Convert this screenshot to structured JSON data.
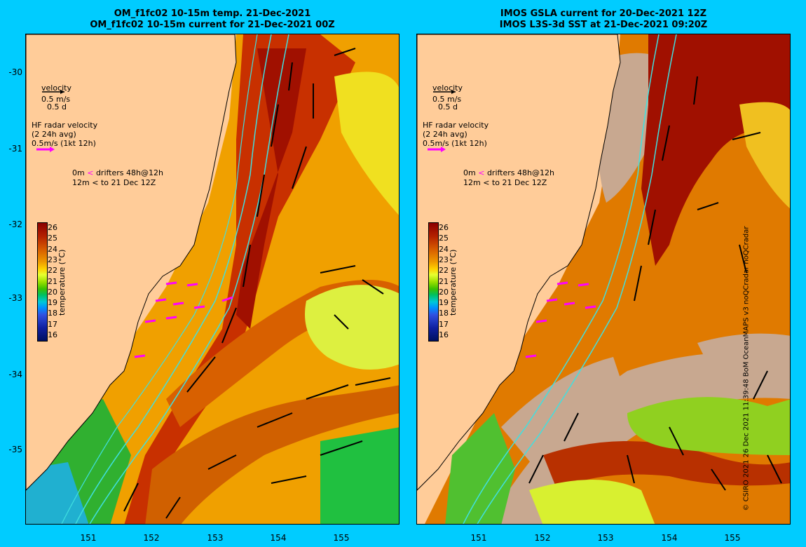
{
  "panels": [
    {
      "title_line1": "OM_f1fc02 10-15m temp. 21-Dec-2021",
      "title_line2": "OM_f1fc02 10-15m current for 21-Dec-2021 00Z"
    },
    {
      "title_line1": "IMOS GSLA current for 20-Dec-2021 12Z",
      "title_line2": "IMOS L3S-3d SST at 21-Dec-2021 09:20Z"
    }
  ],
  "y_ticks": [
    "-30",
    "-31",
    "-32",
    "-33",
    "-34",
    "-35"
  ],
  "x_ticks": [
    "151",
    "152",
    "153",
    "154",
    "155"
  ],
  "legend": {
    "velocity_title": "velocity",
    "velocity_speed": "0.5 m/s",
    "velocity_time": "0.5 d",
    "hf_title": "HF radar velocity",
    "hf_avg": "(2 24h avg)",
    "hf_speed": "0.5m/s (1kt 12h)",
    "drifter_line1_a": "0m",
    "drifter_line1_b": "drifters 48h@12h",
    "drifter_line2_a": "12m",
    "drifter_line2_b": "to 21 Dec 12Z",
    "hf_color": "#ff00ff"
  },
  "colorbar": {
    "label": "temperature (°C)",
    "ticks": [
      "26",
      "25",
      "24",
      "23",
      "22",
      "21",
      "20",
      "19",
      "18",
      "17",
      "16"
    ]
  },
  "credit": "© CSIRO 2021  26 Dec 2021 11:39:48 BoM OceanMAPS v3 noQCradar noQCradar",
  "colors": {
    "background": "#00ccff",
    "land": "#ffcc99",
    "warm_core": "#b22000",
    "contour": "#40e0e0",
    "no_data": "#c8a890"
  }
}
